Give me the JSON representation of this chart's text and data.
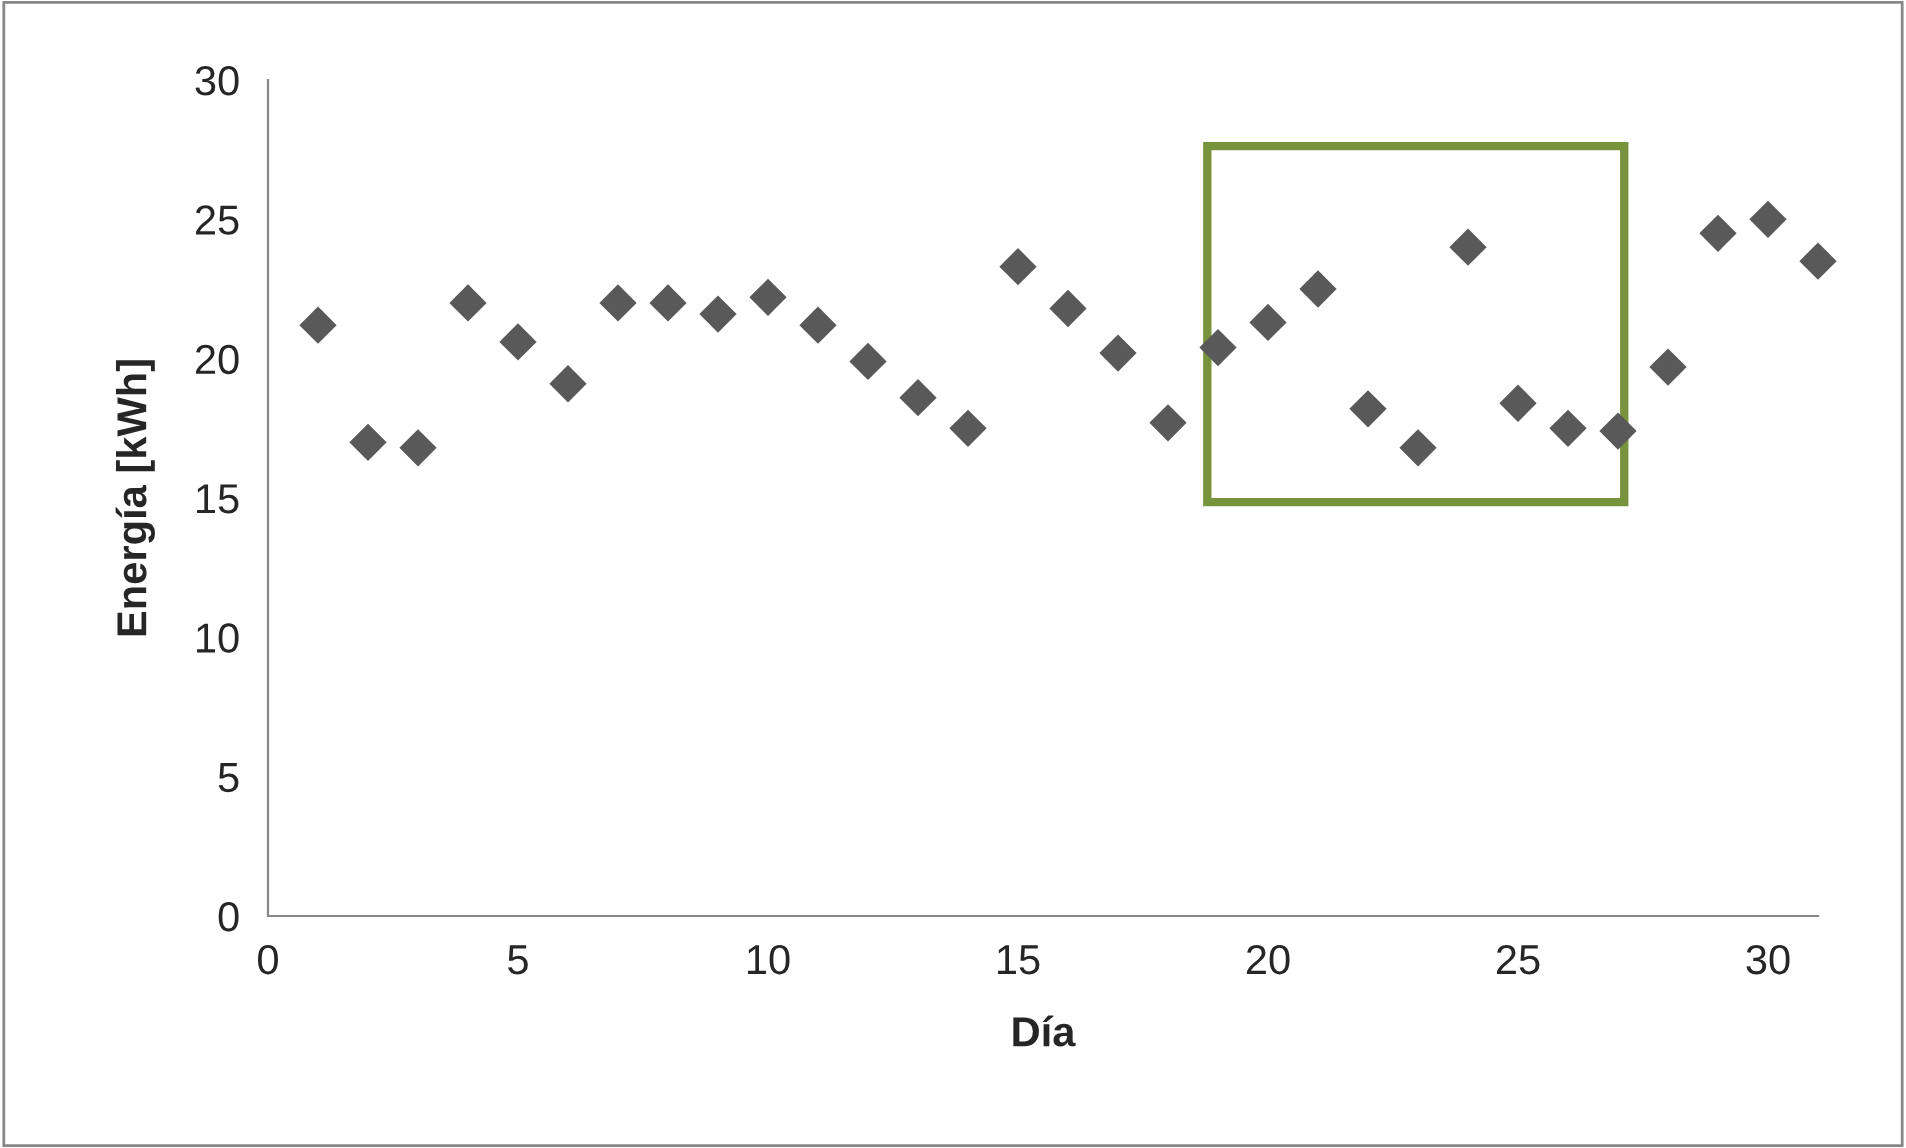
{
  "chart_data": {
    "type": "scatter",
    "xlabel": "Día",
    "ylabel": "Energía [kWh]",
    "x": [
      1,
      2,
      3,
      4,
      5,
      6,
      7,
      8,
      9,
      10,
      11,
      12,
      13,
      14,
      15,
      16,
      17,
      18,
      19,
      20,
      21,
      22,
      23,
      24,
      25,
      26,
      27,
      28,
      29,
      30,
      31
    ],
    "series": [
      {
        "color": "#595959",
        "values": [
          21.2,
          17.0,
          16.8,
          22.0,
          20.6,
          19.1,
          22.0,
          22.0,
          21.6,
          22.2,
          21.2,
          19.9,
          18.6,
          17.5,
          23.3,
          21.8,
          20.2,
          17.7,
          20.4,
          21.3,
          22.5,
          18.2,
          16.8,
          24.0,
          18.4,
          17.5,
          17.4,
          19.7,
          24.5,
          25.0,
          23.5
        ]
      }
    ],
    "marker": "diamond",
    "xlim": [
      0,
      31
    ],
    "xticks": [
      0,
      5,
      10,
      15,
      20,
      25,
      30
    ],
    "ylim": [
      0,
      30
    ],
    "yticks": [
      0,
      5,
      10,
      15,
      20,
      25,
      30
    ],
    "grid": false,
    "legend": false
  }
}
